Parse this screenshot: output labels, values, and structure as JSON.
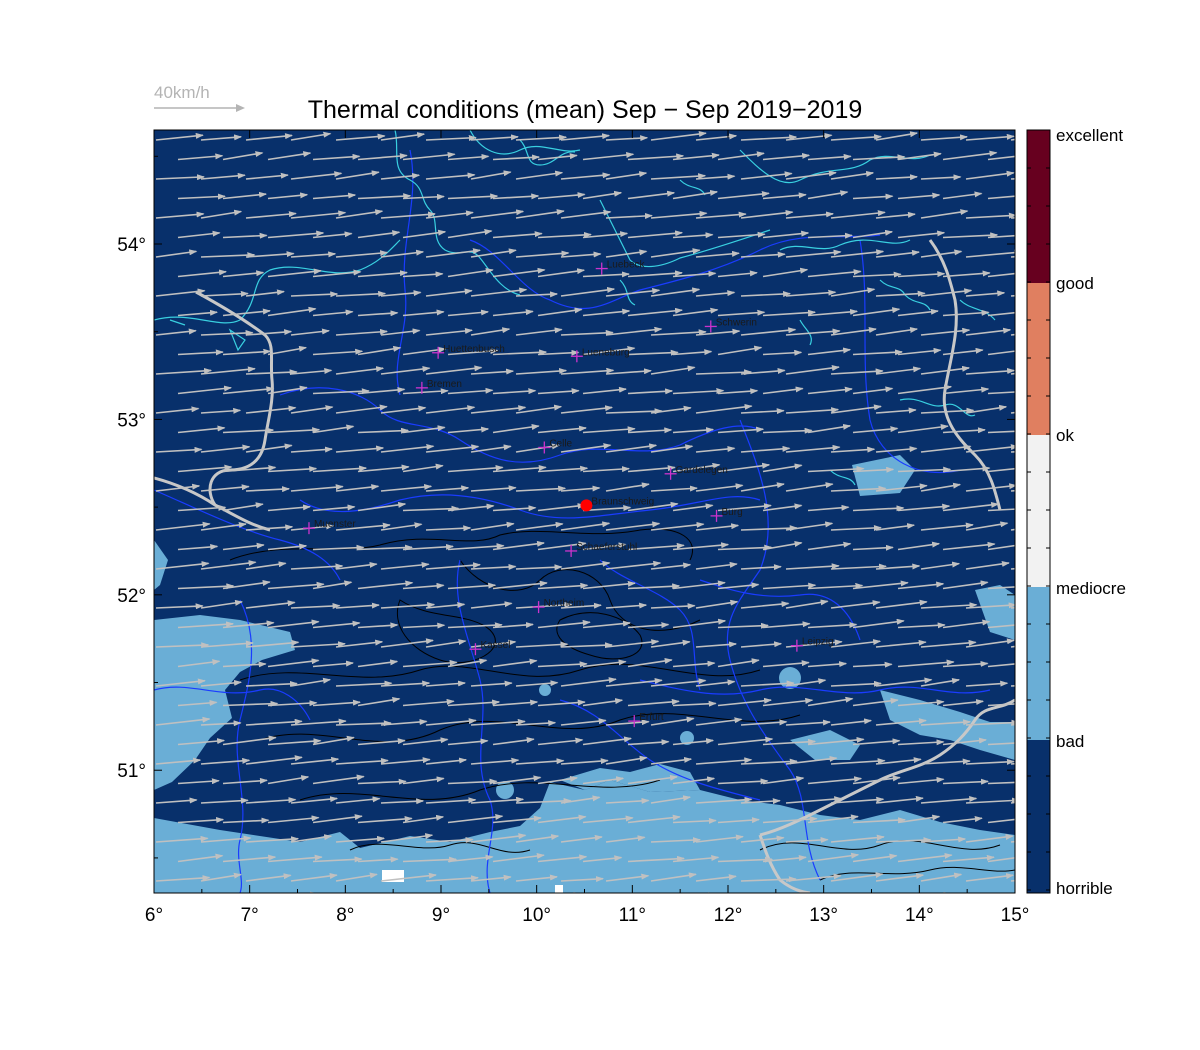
{
  "title": "Thermal conditions (mean) Sep − Sep  2019−2019",
  "wind_scale": {
    "label": "40km/h"
  },
  "map": {
    "lon_range": [
      6,
      15
    ],
    "lat_range": [
      50.3,
      54.65
    ],
    "x_ticks": [
      "6°",
      "7°",
      "8°",
      "9°",
      "10°",
      "11°",
      "12°",
      "13°",
      "14°",
      "15°"
    ],
    "y_ticks": [
      "51°",
      "52°",
      "53°",
      "54°"
    ],
    "y_tick_values": [
      51,
      52,
      53,
      54
    ],
    "wind_direction": "west-southwest",
    "colors": {
      "background": "#08306b",
      "patch": "#6aaed6",
      "coastline": "#39d0e0",
      "border": "#c8c8c8",
      "state_line": "#1a3cff",
      "arrow": "#c0c0c0",
      "city_marker": "#cc33cc",
      "highlight": "#ff0000"
    }
  },
  "cities": [
    {
      "name": "Luebeck",
      "lon": 10.68,
      "lat": 53.86
    },
    {
      "name": "Schwerin",
      "lon": 11.82,
      "lat": 53.53
    },
    {
      "name": "Huettenbusch",
      "lon": 8.97,
      "lat": 53.38
    },
    {
      "name": "Lueneburg",
      "lon": 10.42,
      "lat": 53.36
    },
    {
      "name": "Bremen",
      "lon": 8.8,
      "lat": 53.18
    },
    {
      "name": "Celle",
      "lon": 10.08,
      "lat": 52.84
    },
    {
      "name": "Gardelegen",
      "lon": 11.4,
      "lat": 52.69
    },
    {
      "name": "Braunschweig",
      "lon": 10.52,
      "lat": 52.51,
      "highlight": true
    },
    {
      "name": "Burg",
      "lon": 11.88,
      "lat": 52.45
    },
    {
      "name": "Muenster",
      "lon": 7.62,
      "lat": 52.38
    },
    {
      "name": "Schaeferstuhl",
      "lon": 10.36,
      "lat": 52.25
    },
    {
      "name": "Northeim",
      "lon": 10.02,
      "lat": 51.93
    },
    {
      "name": "Kassel",
      "lon": 9.36,
      "lat": 51.69
    },
    {
      "name": "Leipzig",
      "lon": 12.72,
      "lat": 51.71
    },
    {
      "name": "Erfurt",
      "lon": 11.02,
      "lat": 51.28
    }
  ],
  "colorbar": {
    "labels": [
      "excellent",
      "good",
      "ok",
      "mediocre",
      "bad",
      "horrible"
    ],
    "colors": [
      "#67001f",
      "#e07f60",
      "#f2f2f2",
      "#f2f2f2",
      "#6aaed6",
      "#08306b"
    ]
  }
}
